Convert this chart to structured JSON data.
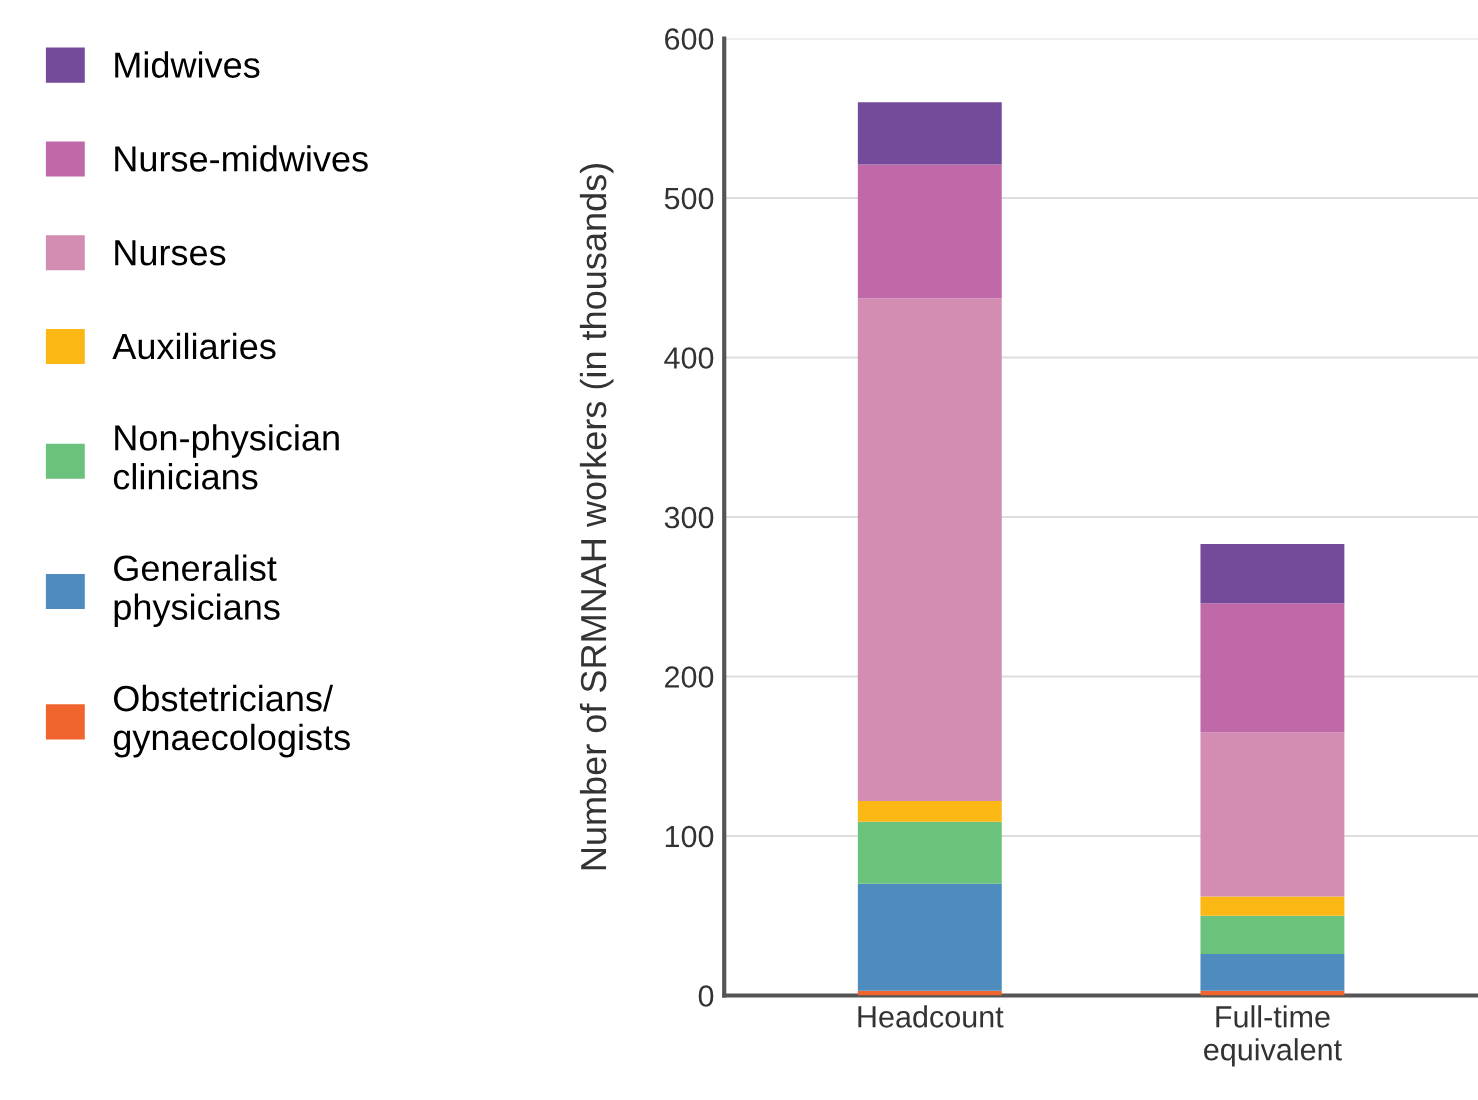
{
  "chart_data": {
    "type": "bar",
    "stacked": true,
    "ylabel": "Number of SRMNAH workers (in thousands)",
    "categories": [
      "Headcount",
      "Full-time\nequivalent"
    ],
    "series": [
      {
        "name": "Obstetricians/\ngynaecologists",
        "color": "#f0642d",
        "values": [
          3,
          3
        ]
      },
      {
        "name": "Generalist\nphysicians",
        "color": "#4e8bbf",
        "values": [
          67,
          23
        ]
      },
      {
        "name": "Non-physician\nclinicians",
        "color": "#6bc27d",
        "values": [
          39,
          24
        ]
      },
      {
        "name": "Auxiliaries",
        "color": "#fbb814",
        "values": [
          13,
          12
        ]
      },
      {
        "name": "Nurses",
        "color": "#d48db2",
        "values": [
          315,
          103
        ]
      },
      {
        "name": "Nurse-midwives",
        "color": "#bf69a8",
        "values": [
          84,
          81
        ]
      },
      {
        "name": "Midwives",
        "color": "#744a9b",
        "values": [
          39,
          37
        ]
      }
    ],
    "ylim": [
      0,
      600
    ],
    "yticks": [
      0,
      100,
      200,
      300,
      400,
      500,
      600
    ],
    "grid": "y",
    "legend": "left"
  }
}
